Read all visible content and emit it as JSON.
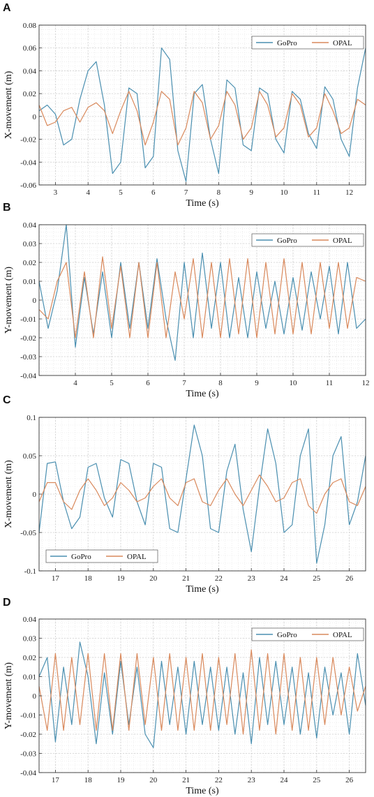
{
  "chart_data": [
    {
      "panel": "A",
      "type": "line",
      "xlabel": "Time (s)",
      "ylabel": "X-movement (m)",
      "xlim": [
        2.5,
        12.5
      ],
      "ylim": [
        -0.06,
        0.08
      ],
      "xticks": [
        3,
        4,
        5,
        6,
        7,
        8,
        9,
        10,
        11,
        12
      ],
      "yticks": [
        -0.06,
        -0.04,
        -0.02,
        0,
        0.02,
        0.04,
        0.06,
        0.08
      ],
      "ytick_labels": [
        "-0.06",
        "-0.04",
        "-0.02",
        "0",
        "0.02",
        "0.04",
        "0.06",
        "0.08"
      ],
      "grid": true,
      "legend": "top-right",
      "series": [
        {
          "name": "GoPro",
          "color": "#4a8fb0",
          "x": [
            2.5,
            2.75,
            3.0,
            3.25,
            3.5,
            3.75,
            4.0,
            4.25,
            4.5,
            4.75,
            5.0,
            5.25,
            5.5,
            5.75,
            6.0,
            6.25,
            6.5,
            6.75,
            7.0,
            7.25,
            7.5,
            7.75,
            8.0,
            8.25,
            8.5,
            8.75,
            9.0,
            9.25,
            9.5,
            9.75,
            10.0,
            10.25,
            10.5,
            10.75,
            11.0,
            11.25,
            11.5,
            11.75,
            12.0,
            12.25,
            12.5
          ],
          "y": [
            0.005,
            0.01,
            0.002,
            -0.025,
            -0.02,
            0.015,
            0.04,
            0.048,
            0.01,
            -0.05,
            -0.04,
            0.025,
            0.02,
            -0.045,
            -0.035,
            0.06,
            0.05,
            -0.03,
            -0.057,
            0.02,
            0.028,
            -0.02,
            -0.05,
            0.032,
            0.025,
            -0.025,
            -0.03,
            0.025,
            0.02,
            -0.02,
            -0.032,
            0.022,
            0.015,
            -0.015,
            -0.028,
            0.026,
            0.015,
            -0.02,
            -0.035,
            0.025,
            0.06
          ]
        },
        {
          "name": "OPAL",
          "color": "#d9895c",
          "x": [
            2.5,
            2.75,
            3.0,
            3.25,
            3.5,
            3.75,
            4.0,
            4.25,
            4.5,
            4.75,
            5.0,
            5.25,
            5.5,
            5.75,
            6.0,
            6.25,
            6.5,
            6.75,
            7.0,
            7.25,
            7.5,
            7.75,
            8.0,
            8.25,
            8.5,
            8.75,
            9.0,
            9.25,
            9.5,
            9.75,
            10.0,
            10.25,
            10.5,
            10.75,
            11.0,
            11.25,
            11.5,
            11.75,
            12.0,
            12.25,
            12.5
          ],
          "y": [
            0.01,
            -0.008,
            -0.005,
            0.005,
            0.008,
            -0.005,
            0.008,
            0.012,
            0.005,
            -0.015,
            0.005,
            0.022,
            0.005,
            -0.025,
            -0.005,
            0.022,
            0.015,
            -0.025,
            -0.01,
            0.022,
            0.012,
            -0.02,
            -0.008,
            0.022,
            0.01,
            -0.02,
            -0.01,
            0.022,
            0.01,
            -0.018,
            -0.01,
            0.02,
            0.01,
            -0.018,
            -0.01,
            0.02,
            0.005,
            -0.015,
            -0.01,
            0.015,
            0.01
          ]
        }
      ]
    },
    {
      "panel": "B",
      "type": "line",
      "xlabel": "Time (s)",
      "ylabel": "Y-movement (m)",
      "xlim": [
        3.0,
        12.0
      ],
      "ylim": [
        -0.04,
        0.04
      ],
      "xticks": [
        4,
        5,
        6,
        7,
        8,
        9,
        10,
        11,
        12
      ],
      "yticks": [
        -0.04,
        -0.03,
        -0.02,
        -0.01,
        0,
        0.01,
        0.02,
        0.03,
        0.04
      ],
      "ytick_labels": [
        "-0.04",
        "-0.03",
        "-0.02",
        "-0.01",
        "0",
        "0.01",
        "0.02",
        "0.03",
        "0.04"
      ],
      "grid": true,
      "legend": "top-right",
      "series": [
        {
          "name": "GoPro",
          "color": "#4a8fb0",
          "x": [
            3.0,
            3.25,
            3.5,
            3.75,
            4.0,
            4.25,
            4.5,
            4.75,
            5.0,
            5.25,
            5.5,
            5.75,
            6.0,
            6.25,
            6.5,
            6.75,
            7.0,
            7.25,
            7.5,
            7.75,
            8.0,
            8.25,
            8.5,
            8.75,
            9.0,
            9.25,
            9.5,
            9.75,
            10.0,
            10.25,
            10.5,
            10.75,
            11.0,
            11.25,
            11.5,
            11.75,
            12.0
          ],
          "y": [
            0.01,
            -0.015,
            0.005,
            0.04,
            -0.025,
            0.012,
            -0.018,
            0.015,
            -0.02,
            0.02,
            -0.015,
            0.02,
            -0.015,
            0.022,
            -0.01,
            -0.032,
            0.02,
            -0.02,
            0.025,
            -0.015,
            0.02,
            -0.02,
            0.012,
            -0.02,
            0.015,
            -0.015,
            0.01,
            -0.018,
            0.012,
            -0.016,
            0.015,
            -0.01,
            0.018,
            -0.018,
            0.02,
            -0.015,
            -0.01
          ]
        },
        {
          "name": "OPAL",
          "color": "#d9895c",
          "x": [
            3.0,
            3.25,
            3.5,
            3.75,
            4.0,
            4.25,
            4.5,
            4.75,
            5.0,
            5.25,
            5.5,
            5.75,
            6.0,
            6.25,
            6.5,
            6.75,
            7.0,
            7.25,
            7.5,
            7.75,
            8.0,
            8.25,
            8.5,
            8.75,
            9.0,
            9.25,
            9.5,
            9.75,
            10.0,
            10.25,
            10.5,
            10.75,
            11.0,
            11.25,
            11.5,
            11.75,
            12.0
          ],
          "y": [
            -0.005,
            -0.01,
            0.01,
            0.02,
            -0.02,
            0.015,
            -0.02,
            0.023,
            -0.015,
            0.018,
            -0.02,
            0.02,
            -0.02,
            0.02,
            -0.02,
            0.015,
            -0.01,
            0.022,
            -0.02,
            0.02,
            -0.02,
            0.022,
            -0.018,
            0.022,
            -0.02,
            0.02,
            -0.018,
            0.022,
            -0.018,
            0.02,
            -0.018,
            0.02,
            -0.015,
            0.02,
            -0.015,
            0.012,
            0.01
          ]
        }
      ]
    },
    {
      "panel": "C",
      "type": "line",
      "xlabel": "Time (s)",
      "ylabel": "X-movement (m)",
      "xlim": [
        16.5,
        26.5
      ],
      "ylim": [
        -0.1,
        0.1
      ],
      "xticks": [
        17,
        18,
        19,
        20,
        21,
        22,
        23,
        24,
        25,
        26
      ],
      "yticks": [
        -0.1,
        -0.05,
        0,
        0.05,
        0.1
      ],
      "ytick_labels": [
        "-0.1",
        "-0.05",
        "0",
        "0.05",
        "0.1"
      ],
      "grid": true,
      "legend": "bottom-left",
      "series": [
        {
          "name": "GoPro",
          "color": "#4a8fb0",
          "x": [
            16.5,
            16.75,
            17.0,
            17.25,
            17.5,
            17.75,
            18.0,
            18.25,
            18.5,
            18.75,
            19.0,
            19.25,
            19.5,
            19.75,
            20.0,
            20.25,
            20.5,
            20.75,
            21.0,
            21.25,
            21.5,
            21.75,
            22.0,
            22.25,
            22.5,
            22.75,
            23.0,
            23.25,
            23.5,
            23.75,
            24.0,
            24.25,
            24.5,
            24.75,
            25.0,
            25.25,
            25.5,
            25.75,
            26.0,
            26.25,
            26.5
          ],
          "y": [
            -0.05,
            0.04,
            0.042,
            -0.01,
            -0.045,
            -0.03,
            0.035,
            0.04,
            -0.005,
            -0.03,
            0.045,
            0.04,
            -0.01,
            -0.04,
            0.04,
            0.035,
            -0.045,
            -0.05,
            0.02,
            0.09,
            0.05,
            -0.045,
            -0.05,
            0.03,
            0.065,
            -0.02,
            -0.075,
            0.01,
            0.085,
            0.04,
            -0.05,
            -0.04,
            0.05,
            0.085,
            -0.09,
            -0.04,
            0.05,
            0.075,
            -0.04,
            -0.01,
            0.05
          ]
        },
        {
          "name": "OPAL",
          "color": "#d9895c",
          "x": [
            16.5,
            16.75,
            17.0,
            17.25,
            17.5,
            17.75,
            18.0,
            18.25,
            18.5,
            18.75,
            19.0,
            19.25,
            19.5,
            19.75,
            20.0,
            20.25,
            20.5,
            20.75,
            21.0,
            21.25,
            21.5,
            21.75,
            22.0,
            22.25,
            22.5,
            22.75,
            23.0,
            23.25,
            23.5,
            23.75,
            24.0,
            24.25,
            24.5,
            24.75,
            25.0,
            25.25,
            25.5,
            25.75,
            26.0,
            26.25,
            26.5
          ],
          "y": [
            -0.01,
            0.015,
            0.015,
            -0.01,
            -0.02,
            0.005,
            0.02,
            0.005,
            -0.015,
            -0.005,
            0.015,
            0.005,
            -0.01,
            -0.005,
            0.01,
            0.02,
            -0.005,
            -0.015,
            0.015,
            0.02,
            -0.01,
            -0.015,
            0.005,
            0.02,
            0.0,
            -0.015,
            0.005,
            0.025,
            0.01,
            -0.01,
            -0.005,
            0.015,
            0.02,
            -0.015,
            -0.025,
            0.0,
            0.015,
            0.02,
            -0.01,
            -0.015,
            0.01
          ]
        }
      ]
    },
    {
      "panel": "D",
      "type": "line",
      "xlabel": "Time (s)",
      "ylabel": "Y-movement (m)",
      "xlim": [
        16.5,
        26.5
      ],
      "ylim": [
        -0.04,
        0.04
      ],
      "xticks": [
        17,
        18,
        19,
        20,
        21,
        22,
        23,
        24,
        25,
        26
      ],
      "yticks": [
        -0.04,
        -0.03,
        -0.02,
        -0.01,
        0,
        0.01,
        0.02,
        0.03,
        0.04
      ],
      "ytick_labels": [
        "-0.04",
        "-0.03",
        "-0.02",
        "-0.01",
        "0",
        "0.01",
        "0.02",
        "0.03",
        "0.04"
      ],
      "grid": true,
      "legend": "top-right",
      "series": [
        {
          "name": "GoPro",
          "color": "#4a8fb0",
          "x": [
            16.5,
            16.75,
            17.0,
            17.25,
            17.5,
            17.75,
            18.0,
            18.25,
            18.5,
            18.75,
            19.0,
            19.25,
            19.5,
            19.75,
            20.0,
            20.25,
            20.5,
            20.75,
            21.0,
            21.25,
            21.5,
            21.75,
            22.0,
            22.25,
            22.5,
            22.75,
            23.0,
            23.25,
            23.5,
            23.75,
            24.0,
            24.25,
            24.5,
            24.75,
            25.0,
            25.25,
            25.5,
            25.75,
            26.0,
            26.25,
            26.5
          ],
          "y": [
            0.01,
            0.02,
            -0.024,
            0.015,
            -0.015,
            0.028,
            0.01,
            -0.025,
            0.012,
            -0.02,
            0.018,
            -0.015,
            0.015,
            -0.02,
            -0.027,
            0.018,
            -0.015,
            0.015,
            -0.02,
            0.018,
            -0.015,
            0.015,
            -0.018,
            0.015,
            -0.02,
            0.012,
            -0.025,
            0.02,
            -0.015,
            0.018,
            -0.015,
            0.015,
            -0.02,
            0.012,
            -0.022,
            0.015,
            -0.01,
            0.012,
            -0.02,
            0.022,
            -0.005
          ]
        },
        {
          "name": "OPAL",
          "color": "#d9895c",
          "x": [
            16.5,
            16.75,
            17.0,
            17.25,
            17.5,
            17.75,
            18.0,
            18.25,
            18.5,
            18.75,
            19.0,
            19.25,
            19.5,
            19.75,
            20.0,
            20.25,
            20.5,
            20.75,
            21.0,
            21.25,
            21.5,
            21.75,
            22.0,
            22.25,
            22.5,
            22.75,
            23.0,
            23.25,
            23.5,
            23.75,
            24.0,
            24.25,
            24.5,
            24.75,
            25.0,
            25.25,
            25.5,
            25.75,
            26.0,
            26.25,
            26.5
          ],
          "y": [
            0.005,
            -0.018,
            0.022,
            -0.018,
            0.02,
            -0.015,
            0.022,
            -0.018,
            0.022,
            -0.018,
            0.022,
            -0.018,
            0.022,
            -0.015,
            0.02,
            -0.018,
            0.022,
            -0.018,
            0.02,
            -0.018,
            0.022,
            -0.018,
            0.02,
            -0.015,
            0.022,
            -0.02,
            0.024,
            -0.018,
            0.022,
            -0.02,
            0.022,
            -0.018,
            0.02,
            -0.018,
            0.02,
            -0.015,
            0.02,
            -0.01,
            0.015,
            -0.008,
            0.005
          ]
        }
      ]
    }
  ]
}
